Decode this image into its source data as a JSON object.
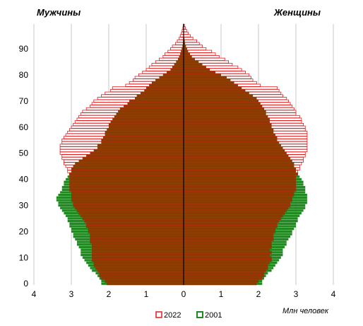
{
  "chart_data": {
    "type": "bar",
    "orientation": "horizontal-population-pyramid",
    "left_title": "Мужчины",
    "right_title": "Женщины",
    "unit_label": "Млн человек",
    "x_ticks_left": [
      "4",
      "3",
      "2",
      "1"
    ],
    "x_tick_center": "0",
    "x_ticks_right": [
      "1",
      "2",
      "3",
      "4"
    ],
    "y_ticks": [
      "0",
      "10",
      "20",
      "30",
      "40",
      "50",
      "60",
      "70",
      "80",
      "90"
    ],
    "xlim": [
      -4,
      4
    ],
    "ylim": [
      0,
      100
    ],
    "grid": "vertical",
    "legend_position": "bottom-center",
    "colors": {
      "series_2022_outline": "#e31a1c",
      "series_2022_fill": "#ffffff",
      "series_2001_fill": "#1f8a1f",
      "overlap_fill": "#8b3a00",
      "grid": "#c8c8c8"
    },
    "ages": [
      0,
      1,
      2,
      3,
      4,
      5,
      6,
      7,
      8,
      9,
      10,
      11,
      12,
      13,
      14,
      15,
      16,
      17,
      18,
      19,
      20,
      21,
      22,
      23,
      24,
      25,
      26,
      27,
      28,
      29,
      30,
      31,
      32,
      33,
      34,
      35,
      36,
      37,
      38,
      39,
      40,
      41,
      42,
      43,
      44,
      45,
      46,
      47,
      48,
      49,
      50,
      51,
      52,
      53,
      54,
      55,
      56,
      57,
      58,
      59,
      60,
      61,
      62,
      63,
      64,
      65,
      66,
      67,
      68,
      69,
      70,
      71,
      72,
      73,
      74,
      75,
      76,
      77,
      78,
      79,
      80,
      81,
      82,
      83,
      84,
      85,
      86,
      87,
      88,
      89,
      90,
      91,
      92,
      93,
      94,
      95,
      96,
      97,
      98,
      99
    ],
    "series": [
      {
        "name": "2022",
        "men": [
          2.05,
          2.1,
          2.2,
          2.25,
          2.25,
          2.3,
          2.35,
          2.4,
          2.4,
          2.45,
          2.45,
          2.45,
          2.45,
          2.45,
          2.45,
          2.45,
          2.5,
          2.5,
          2.5,
          2.5,
          2.55,
          2.55,
          2.6,
          2.6,
          2.65,
          2.7,
          2.75,
          2.8,
          2.85,
          2.9,
          2.95,
          2.95,
          3.0,
          3.0,
          3.0,
          3.0,
          3.05,
          3.05,
          3.05,
          3.05,
          3.05,
          3.05,
          3.05,
          3.1,
          3.1,
          3.15,
          3.2,
          3.2,
          3.25,
          3.25,
          3.3,
          3.3,
          3.3,
          3.3,
          3.25,
          3.25,
          3.2,
          3.15,
          3.1,
          3.05,
          3.0,
          2.95,
          2.9,
          2.85,
          2.8,
          2.75,
          2.7,
          2.6,
          2.5,
          2.45,
          2.4,
          2.3,
          2.2,
          2.1,
          1.95,
          1.9,
          1.55,
          1.45,
          1.35,
          1.3,
          1.2,
          1.1,
          1.0,
          0.92,
          0.85,
          0.75,
          0.65,
          0.55,
          0.5,
          0.42,
          0.35,
          0.3,
          0.22,
          0.17,
          0.12,
          0.09,
          0.06,
          0.04,
          0.02,
          0.01
        ],
        "women": [
          1.95,
          2.0,
          2.1,
          2.15,
          2.15,
          2.2,
          2.25,
          2.25,
          2.3,
          2.35,
          2.35,
          2.3,
          2.35,
          2.3,
          2.35,
          2.35,
          2.35,
          2.4,
          2.4,
          2.4,
          2.45,
          2.45,
          2.5,
          2.5,
          2.55,
          2.6,
          2.65,
          2.7,
          2.75,
          2.8,
          2.85,
          2.85,
          2.9,
          2.9,
          2.95,
          2.95,
          3.0,
          3.0,
          3.0,
          3.0,
          3.0,
          3.0,
          3.05,
          3.05,
          3.1,
          3.1,
          3.15,
          3.2,
          3.2,
          3.25,
          3.25,
          3.3,
          3.3,
          3.3,
          3.3,
          3.3,
          3.3,
          3.3,
          3.3,
          3.25,
          3.25,
          3.2,
          3.15,
          3.15,
          3.1,
          3.0,
          3.0,
          2.95,
          2.9,
          2.85,
          2.8,
          2.75,
          2.65,
          2.6,
          2.55,
          2.5,
          2.05,
          1.95,
          1.85,
          1.8,
          1.75,
          1.65,
          1.55,
          1.45,
          1.3,
          1.2,
          1.1,
          0.95,
          0.85,
          0.75,
          0.6,
          0.5,
          0.42,
          0.35,
          0.25,
          0.18,
          0.12,
          0.08,
          0.05,
          0.02
        ]
      },
      {
        "name": "2001",
        "men": [
          2.2,
          2.2,
          2.25,
          2.3,
          2.35,
          2.45,
          2.5,
          2.55,
          2.6,
          2.65,
          2.7,
          2.75,
          2.75,
          2.75,
          2.8,
          2.85,
          2.85,
          2.9,
          2.95,
          2.95,
          3.0,
          3.0,
          3.05,
          3.05,
          3.1,
          3.1,
          3.15,
          3.2,
          3.25,
          3.3,
          3.35,
          3.35,
          3.4,
          3.4,
          3.35,
          3.3,
          3.25,
          3.25,
          3.2,
          3.2,
          3.15,
          3.1,
          3.05,
          3.0,
          3.0,
          2.95,
          2.9,
          2.8,
          2.7,
          2.6,
          2.5,
          2.4,
          2.3,
          2.3,
          2.2,
          2.2,
          2.15,
          2.1,
          2.1,
          2.05,
          2.0,
          2.0,
          1.95,
          1.9,
          1.85,
          1.8,
          1.75,
          1.7,
          1.6,
          1.5,
          1.45,
          1.3,
          1.25,
          1.15,
          1.05,
          1.0,
          0.92,
          0.85,
          0.75,
          0.65,
          0.55,
          0.45,
          0.35,
          0.3,
          0.25,
          0.2,
          0.15,
          0.12,
          0.09,
          0.07,
          0.05,
          0.03,
          0.02,
          0.015,
          0.01,
          0.005,
          0.0,
          0.0,
          0.0,
          0.0
        ],
        "women": [
          2.1,
          2.1,
          2.15,
          2.2,
          2.25,
          2.35,
          2.4,
          2.45,
          2.5,
          2.55,
          2.6,
          2.65,
          2.65,
          2.65,
          2.7,
          2.75,
          2.75,
          2.8,
          2.85,
          2.9,
          2.9,
          2.95,
          3.0,
          3.0,
          3.05,
          3.05,
          3.1,
          3.15,
          3.2,
          3.25,
          3.25,
          3.3,
          3.3,
          3.3,
          3.3,
          3.25,
          3.25,
          3.25,
          3.2,
          3.2,
          3.15,
          3.1,
          3.05,
          3.0,
          3.0,
          2.95,
          2.95,
          2.9,
          2.85,
          2.8,
          2.75,
          2.7,
          2.65,
          2.6,
          2.55,
          2.5,
          2.5,
          2.45,
          2.4,
          2.4,
          2.35,
          2.35,
          2.3,
          2.3,
          2.25,
          2.2,
          2.2,
          2.15,
          2.1,
          2.05,
          2.0,
          1.95,
          1.85,
          1.75,
          1.65,
          1.55,
          1.45,
          1.35,
          1.25,
          1.15,
          1.0,
          0.85,
          0.7,
          0.6,
          0.5,
          0.4,
          0.3,
          0.22,
          0.17,
          0.12,
          0.09,
          0.06,
          0.04,
          0.03,
          0.02,
          0.01,
          0.005,
          0.0,
          0.0,
          0.0
        ]
      }
    ]
  }
}
